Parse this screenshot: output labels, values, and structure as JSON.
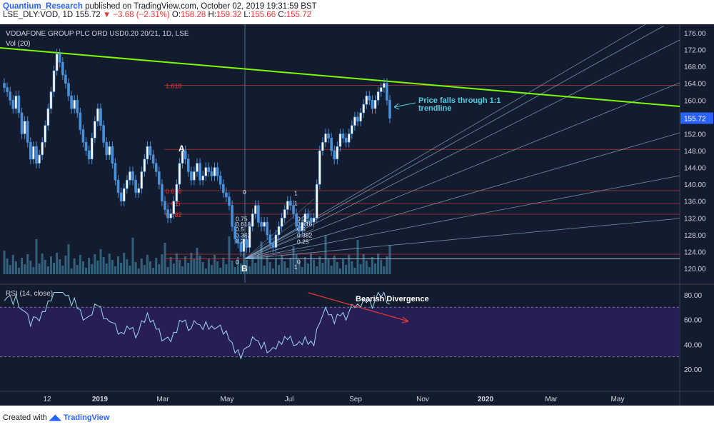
{
  "header": {
    "author": "Quantium_Research",
    "published_text": "published on TradingView.com, October 02, 2019 19:31:59 BST",
    "symbol_line": "LSE_DLY:VOD, 1D",
    "last_price": "155.72",
    "change": "−3.68 (−2.31%)",
    "open_label": "O:",
    "open": "158.28",
    "high_label": "H:",
    "high": "159.32",
    "low_label": "L:",
    "low": "155.66",
    "close_label": "C:",
    "close": "155.72"
  },
  "chart_title": "VODAFONE GROUP PLC ORD USD0.20 20/21, 1D, LSE",
  "volume_label": "Vol (20)",
  "rsi_label": "RSI (14, close)",
  "footer": {
    "created_with": "Created with",
    "brand": "TradingView"
  },
  "colors": {
    "background": "#131b2e",
    "candle": "#4a90d9",
    "trendline": "#7cfc00",
    "fib": "#e53935",
    "rsi_line": "#a0d8ef",
    "rsi_band": "#2a1f5a",
    "annotation": "#4dd0e1",
    "price_tag": "#2962ff"
  },
  "chart_data": [
    {
      "type": "candlestick",
      "x_tick_labels": [
        "12",
        "2019",
        "Mar",
        "May",
        "Jul",
        "Sep",
        "Nov",
        "2020",
        "Mar",
        "May"
      ],
      "y_tick_labels": [
        "176.00",
        "172.00",
        "168.00",
        "164.00",
        "160.00",
        "156.00",
        "152.00",
        "148.00",
        "144.00",
        "140.00",
        "136.00",
        "132.00",
        "128.00",
        "124.00",
        "120.00"
      ],
      "ylim": [
        118.5,
        177.5
      ],
      "last_price_label": "155.72",
      "close_series": [
        163,
        162,
        160,
        158,
        161,
        157,
        152,
        155,
        150,
        146,
        149,
        145,
        147,
        150,
        154,
        158,
        162,
        167,
        171,
        169,
        166,
        164,
        161,
        158,
        160,
        157,
        153,
        150,
        148,
        146,
        151,
        155,
        158,
        154,
        150,
        147,
        149,
        145,
        141,
        138,
        136,
        139,
        141,
        143,
        141,
        138,
        139,
        143,
        146,
        149,
        147,
        145,
        143,
        140,
        136,
        134,
        132,
        133,
        136,
        140,
        145,
        148,
        146,
        143,
        141,
        143,
        145,
        141,
        142,
        144,
        143,
        142,
        144,
        142,
        140,
        138,
        137,
        135,
        130,
        127,
        126,
        124,
        127,
        125,
        130,
        133,
        135,
        131,
        130,
        131,
        128,
        126,
        125,
        128,
        130,
        132,
        134,
        136,
        135,
        133,
        130,
        129,
        131,
        133,
        132,
        131,
        132,
        140,
        148,
        150,
        152,
        151,
        148,
        146,
        149,
        152,
        151,
        150,
        152,
        154,
        156,
        155,
        157,
        159,
        161,
        160,
        158,
        160,
        162,
        163,
        164,
        160,
        155.72
      ],
      "trendline_label": "Price falls through 1:1 trendline",
      "point_labels": [
        "A",
        "B"
      ],
      "fib_retracement_labels": [
        "1.618",
        "0.618",
        "0.5",
        "0.382",
        "0"
      ],
      "fib_levels": [
        {
          "label": "1.618",
          "price": 163.5
        },
        {
          "label": "",
          "price": 148.3
        },
        {
          "label": "0.618",
          "price": 138.5
        },
        {
          "label": "0.5",
          "price": 135.5
        },
        {
          "label": "0.382",
          "price": 132.9
        },
        {
          "label": "",
          "price": 123.4
        },
        {
          "label": "0",
          "price": 122.3
        }
      ],
      "fan_labels_left": [
        "0",
        "0.75",
        "0.618",
        "0.5",
        "0.382",
        "0.25",
        "0"
      ],
      "fan_labels_right": [
        "1",
        "1",
        "0.75",
        "0.618",
        "0.5",
        "0.382",
        "0.25",
        "0",
        "1"
      ]
    },
    {
      "type": "line",
      "name": "RSI (14, close)",
      "y_tick_labels": [
        "80.00",
        "60.00",
        "40.00",
        "20.00"
      ],
      "ylim": [
        15,
        85
      ],
      "overbought": 70,
      "oversold": 30,
      "annotation": "Bearish Divergence"
    }
  ]
}
